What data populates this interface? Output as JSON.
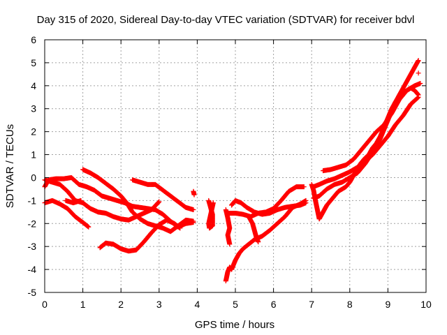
{
  "chart_data": {
    "type": "scatter",
    "title": "Day 315 of 2020, Sidereal Day-to-day VTEC variation (SDTVAR) for receiver bdvl",
    "xlabel": "GPS time / hours",
    "ylabel": "SDTVAR / TECUs",
    "xlim": [
      0,
      10
    ],
    "ylim": [
      -5,
      6
    ],
    "xticks": [
      "0",
      "1",
      "2",
      "3",
      "4",
      "5",
      "6",
      "7",
      "8",
      "9",
      "10"
    ],
    "yticks": [
      "-5",
      "-4",
      "-3",
      "-2",
      "-1",
      "0",
      "1",
      "2",
      "3",
      "4",
      "5",
      "6"
    ],
    "grid": true,
    "marker": "plus",
    "color": "#ff0000",
    "tracks": [
      [
        [
          0.0,
          -0.4
        ],
        [
          0.1,
          -0.1
        ],
        [
          0.3,
          -0.05
        ],
        [
          0.5,
          -0.05
        ],
        [
          0.7,
          0.0
        ],
        [
          0.9,
          -0.3
        ],
        [
          1.1,
          -0.4
        ],
        [
          1.3,
          -0.55
        ],
        [
          1.5,
          -0.8
        ],
        [
          1.7,
          -0.9
        ],
        [
          1.9,
          -1.0
        ],
        [
          2.1,
          -1.1
        ],
        [
          2.3,
          -1.25
        ],
        [
          2.5,
          -1.3
        ],
        [
          2.7,
          -1.35
        ],
        [
          2.9,
          -1.4
        ],
        [
          3.1,
          -1.6
        ],
        [
          3.3,
          -1.9
        ],
        [
          3.5,
          -2.15
        ],
        [
          3.7,
          -2.0
        ],
        [
          3.9,
          -1.95
        ]
      ],
      [
        [
          0.0,
          -0.1
        ],
        [
          0.2,
          -0.2
        ],
        [
          0.4,
          -0.3
        ],
        [
          0.6,
          -0.6
        ],
        [
          0.8,
          -1.0
        ],
        [
          1.0,
          -1.1
        ],
        [
          1.2,
          -1.35
        ],
        [
          1.4,
          -1.5
        ],
        [
          1.6,
          -1.55
        ],
        [
          1.8,
          -1.7
        ],
        [
          2.0,
          -1.8
        ],
        [
          2.2,
          -1.85
        ],
        [
          2.4,
          -1.7
        ],
        [
          2.6,
          -1.55
        ],
        [
          2.8,
          -1.4
        ],
        [
          3.0,
          -1.05
        ]
      ],
      [
        [
          0.0,
          -1.1
        ],
        [
          0.2,
          -1.0
        ],
        [
          0.4,
          -1.15
        ],
        [
          0.6,
          -1.35
        ],
        [
          0.8,
          -1.7
        ],
        [
          1.0,
          -1.95
        ],
        [
          1.15,
          -2.15
        ]
      ],
      [
        [
          1.0,
          0.35
        ],
        [
          1.2,
          0.2
        ],
        [
          1.4,
          0.0
        ],
        [
          1.6,
          -0.25
        ],
        [
          1.8,
          -0.5
        ],
        [
          2.0,
          -0.8
        ],
        [
          2.15,
          -1.1
        ],
        [
          2.3,
          -1.5
        ],
        [
          2.5,
          -1.8
        ],
        [
          2.7,
          -2.0
        ],
        [
          2.9,
          -2.1
        ],
        [
          3.1,
          -2.2
        ],
        [
          3.3,
          -2.35
        ],
        [
          3.5,
          -2.1
        ],
        [
          3.7,
          -1.85
        ],
        [
          3.9,
          -1.9
        ]
      ],
      [
        [
          0.55,
          -1.0
        ],
        [
          0.75,
          -1.1
        ],
        [
          0.95,
          -1.0
        ]
      ],
      [
        [
          1.45,
          -3.05
        ],
        [
          1.6,
          -2.85
        ],
        [
          1.8,
          -2.9
        ],
        [
          2.0,
          -3.1
        ],
        [
          2.2,
          -3.2
        ],
        [
          2.4,
          -3.15
        ],
        [
          2.6,
          -2.8
        ],
        [
          2.8,
          -2.4
        ],
        [
          3.0,
          -2.05
        ],
        [
          3.2,
          -1.85
        ],
        [
          3.4,
          -2.0
        ],
        [
          3.55,
          -2.2
        ]
      ],
      [
        [
          2.3,
          -0.1
        ],
        [
          2.5,
          -0.2
        ],
        [
          2.7,
          -0.3
        ],
        [
          2.9,
          -0.3
        ],
        [
          3.1,
          -0.55
        ],
        [
          3.3,
          -0.8
        ],
        [
          3.5,
          -1.05
        ],
        [
          3.7,
          -1.3
        ],
        [
          3.9,
          -1.4
        ]
      ],
      [
        [
          3.9,
          -0.6
        ],
        [
          3.92,
          -0.75
        ]
      ],
      [
        [
          4.3,
          -1.0
        ],
        [
          4.35,
          -1.3
        ],
        [
          4.4,
          -1.6
        ],
        [
          4.4,
          -2.1
        ],
        [
          4.32,
          -2.2
        ],
        [
          4.3,
          -2.0
        ],
        [
          4.42,
          -1.1
        ]
      ],
      [
        [
          4.75,
          -4.5
        ],
        [
          4.8,
          -4.1
        ],
        [
          4.85,
          -3.9
        ],
        [
          4.9,
          -4.0
        ],
        [
          5.0,
          -3.6
        ],
        [
          5.1,
          -3.3
        ],
        [
          5.2,
          -3.1
        ],
        [
          5.35,
          -2.9
        ],
        [
          5.5,
          -2.7
        ],
        [
          5.7,
          -2.55
        ],
        [
          5.9,
          -2.3
        ],
        [
          6.1,
          -2.0
        ],
        [
          6.3,
          -1.7
        ],
        [
          6.5,
          -1.3
        ],
        [
          6.7,
          -1.15
        ],
        [
          6.85,
          -1.0
        ]
      ],
      [
        [
          4.75,
          -1.4
        ],
        [
          4.8,
          -1.75
        ],
        [
          4.85,
          -2.2
        ],
        [
          4.8,
          -2.5
        ],
        [
          4.85,
          -2.9
        ]
      ],
      [
        [
          4.9,
          -1.2
        ],
        [
          5.0,
          -1.0
        ],
        [
          5.15,
          -1.1
        ],
        [
          5.3,
          -1.3
        ],
        [
          5.5,
          -1.5
        ],
        [
          5.7,
          -1.6
        ],
        [
          5.9,
          -1.55
        ],
        [
          6.1,
          -1.4
        ],
        [
          6.3,
          -1.3
        ],
        [
          6.5,
          -1.25
        ],
        [
          6.7,
          -1.2
        ],
        [
          6.85,
          -1.1
        ]
      ],
      [
        [
          4.8,
          -1.55
        ],
        [
          5.0,
          -1.55
        ],
        [
          5.2,
          -1.6
        ],
        [
          5.4,
          -1.7
        ],
        [
          5.6,
          -1.55
        ],
        [
          5.8,
          -1.5
        ],
        [
          6.0,
          -1.35
        ],
        [
          6.2,
          -1.0
        ],
        [
          6.4,
          -0.6
        ],
        [
          6.6,
          -0.4
        ],
        [
          6.8,
          -0.4
        ]
      ],
      [
        [
          5.35,
          -1.7
        ],
        [
          5.45,
          -2.0
        ],
        [
          5.5,
          -2.3
        ],
        [
          5.55,
          -2.6
        ],
        [
          5.6,
          -2.8
        ]
      ],
      [
        [
          7.0,
          -0.3
        ],
        [
          7.05,
          -0.55
        ],
        [
          7.1,
          -1.0
        ],
        [
          7.15,
          -1.4
        ],
        [
          7.2,
          -1.8
        ],
        [
          7.3,
          -1.5
        ],
        [
          7.4,
          -1.2
        ],
        [
          7.5,
          -1.0
        ],
        [
          7.6,
          -0.8
        ],
        [
          7.7,
          -0.6
        ],
        [
          7.8,
          -0.5
        ],
        [
          7.9,
          -0.4
        ],
        [
          8.0,
          -0.2
        ],
        [
          8.1,
          0.1
        ],
        [
          8.2,
          0.4
        ],
        [
          8.3,
          0.65
        ],
        [
          8.4,
          0.85
        ],
        [
          8.5,
          1.0
        ],
        [
          8.6,
          1.3
        ],
        [
          8.7,
          1.5
        ],
        [
          8.8,
          1.8
        ],
        [
          8.9,
          2.2
        ],
        [
          9.0,
          2.6
        ],
        [
          9.1,
          3.0
        ],
        [
          9.2,
          3.3
        ],
        [
          9.3,
          3.5
        ],
        [
          9.4,
          3.7
        ],
        [
          9.5,
          3.8
        ],
        [
          9.6,
          3.9
        ],
        [
          9.7,
          3.8
        ],
        [
          9.8,
          3.6
        ]
      ],
      [
        [
          7.05,
          -0.4
        ],
        [
          7.2,
          -0.3
        ],
        [
          7.4,
          -0.15
        ],
        [
          7.6,
          -0.05
        ],
        [
          7.8,
          0.1
        ],
        [
          8.0,
          0.25
        ],
        [
          8.2,
          0.45
        ],
        [
          8.4,
          0.7
        ],
        [
          8.6,
          1.0
        ],
        [
          8.8,
          1.4
        ],
        [
          9.0,
          1.8
        ],
        [
          9.2,
          2.3
        ],
        [
          9.4,
          2.7
        ],
        [
          9.6,
          3.2
        ],
        [
          9.8,
          3.5
        ]
      ],
      [
        [
          7.05,
          -0.9
        ],
        [
          7.2,
          -0.8
        ],
        [
          7.4,
          -0.5
        ],
        [
          7.6,
          -0.3
        ],
        [
          7.8,
          -0.2
        ],
        [
          8.0,
          0.0
        ],
        [
          8.2,
          0.2
        ],
        [
          8.4,
          0.6
        ],
        [
          8.6,
          1.1
        ],
        [
          8.8,
          1.7
        ],
        [
          9.0,
          2.5
        ],
        [
          9.2,
          3.3
        ],
        [
          9.4,
          3.9
        ],
        [
          9.6,
          4.5
        ],
        [
          9.8,
          5.1
        ]
      ],
      [
        [
          7.3,
          0.3
        ],
        [
          7.5,
          0.35
        ],
        [
          7.7,
          0.45
        ],
        [
          7.9,
          0.55
        ],
        [
          8.1,
          0.8
        ],
        [
          8.3,
          1.2
        ],
        [
          8.5,
          1.6
        ],
        [
          8.7,
          2.0
        ],
        [
          8.9,
          2.3
        ],
        [
          9.1,
          2.8
        ],
        [
          9.3,
          3.4
        ],
        [
          9.5,
          3.8
        ],
        [
          9.7,
          4.0
        ],
        [
          9.85,
          4.1
        ]
      ],
      [
        [
          9.8,
          4.55
        ]
      ]
    ]
  }
}
